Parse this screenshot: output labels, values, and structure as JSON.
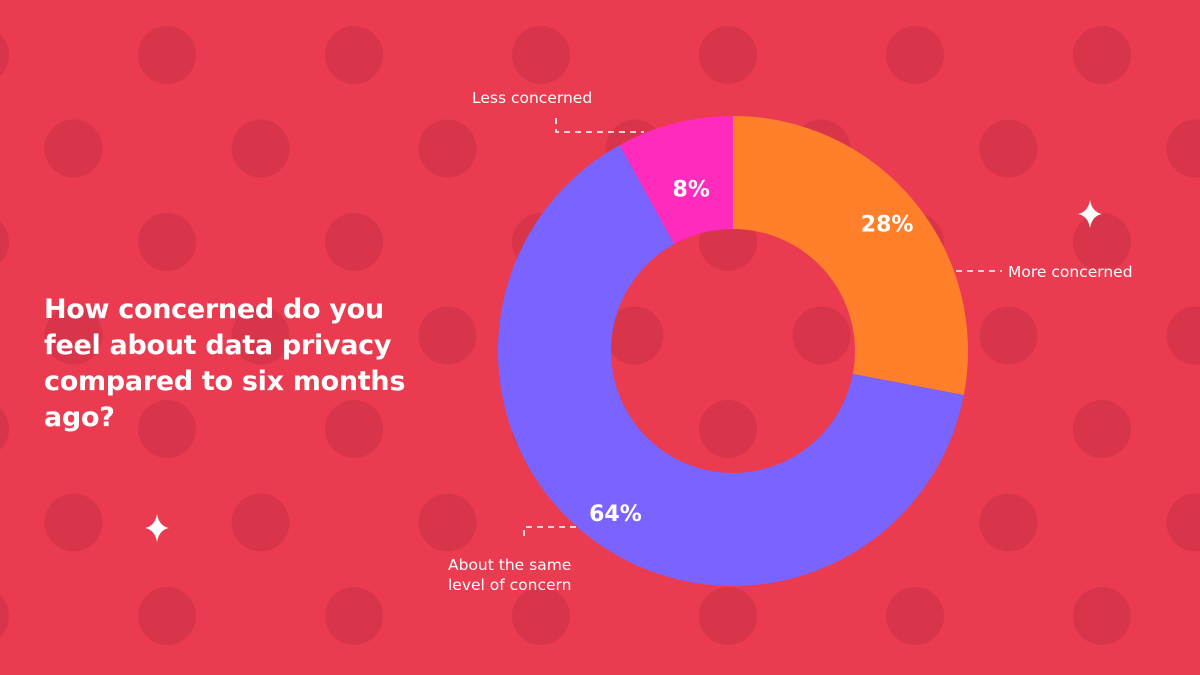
{
  "colors": {
    "background": "#ea3b50",
    "dot": "#d8354a",
    "more": "#ff7f2a",
    "same": "#7b63ff",
    "less": "#ff2bbd",
    "text": "#ffffff"
  },
  "question": "How concerned do you feel about data privacy compared to six months ago?",
  "chart_data": {
    "type": "pie",
    "style": "donut",
    "title": "",
    "slices": [
      {
        "name": "More concerned",
        "value": 28,
        "label": "28%",
        "color": "#ff7f2a"
      },
      {
        "name": "About the same level of concern",
        "value": 64,
        "label": "64%",
        "color": "#7b63ff"
      },
      {
        "name": "Less concerned",
        "value": 8,
        "label": "8%",
        "color": "#ff2bbd"
      }
    ]
  },
  "callouts": {
    "less": "Less concerned",
    "more": "More concerned",
    "same_line1": "About the same",
    "same_line2": "level of concern"
  },
  "decorations": [
    "sparkle-icon",
    "sparkle-icon"
  ]
}
